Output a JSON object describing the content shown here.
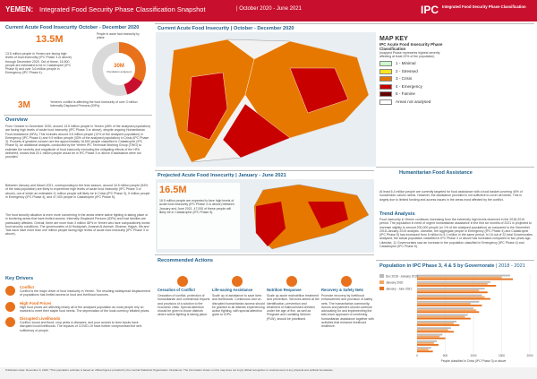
{
  "header": {
    "title": "YEMEN:",
    "subtitle": "Integrated Food Security Phase Classification Snapshot",
    "period": "| October 2020 - June 2021",
    "logo": "IPC",
    "logo_text": "Integrated Food Security Phase Classification"
  },
  "current": {
    "heading": "Current Acute Food Insecurity October - December 2020",
    "figure": "13.5M",
    "caption": "People in acute food insecurity by phase",
    "donut_center": "30M",
    "donut_center_text": "Population analysed",
    "text": "13.5 million people in Yemen are facing high levels of food insecurity (IPC Phase 3 or above) through December 2020. Out of these, 16,500 people are estimated to be in Catastrophe (IPC Phase 5) and over 3.6 million people in Emergency (IPC Phase 4).",
    "idp_figure": "3M",
    "idp_text": "Yemen's conflict is affecting the food insecurity of over 3 million Internally Displaced Persons (IDPs)."
  },
  "chart_data": {
    "type": "donut",
    "values": [
      9.9,
      3.6,
      16.5
    ],
    "colors": [
      "#e8711c",
      "#c8102e",
      "#d9d9d9"
    ]
  },
  "overview": {
    "heading": "Overview",
    "p1": "From October to December 2020, around 13.5 million people in Yemen (45% of the analysed population) are facing high levels of acute food insecurity (IPC Phase 3 or above), despite ongoing Humanitarian Food Assistance (HFA). This includes around 3.6 million people (12% of the analysed population) in Emergency (IPC Phase 4) and 9.9 million people (33% of the analysed population) in Crisis (IPC Phase 3). Pockets of greatest concern are the approximately 16,500 people classified in Catastrophe (IPC Phase 5). An additional analysis, conducted by the Yemen IPC Technical Working Group (TWG) to estimate the severity and magnitude of food insecurity excluding the mitigating effects of the HFA delivered, shows that 20.1 million people would be in IPC Phase 3 or above if assistance were not provided.",
    "p2": "Between January and March 2021, corresponding to the lean season, around 16.5 million people (54% of the total population) are likely to experience high levels of acute food insecurity (IPC Phase 3 or above), out of which an estimated 11 million people will likely be in Crisis (IPC Phase 3), 5 million people in Emergency (IPC Phase 4), and 47,000 people in Catastrophe (IPC Phase 5).",
    "p3": "The food security situation is even more concerning in the areas where active fighting is taking place or in bordering areas that have limited access. Internally Displaced Persons (IDPs) and host families are particularly affected. Overall, there are more than 3 million IDPs in Yemen who face comparatively worse food security conditions. The governorates of Al Hudaydah, Amanat Al Asimah, Dhamar, Hajjah, Ibb and Taiz each have more than one million people facing high levels of acute food insecurity (IPC Phase 3 or above)."
  },
  "drivers": {
    "heading": "Key Drivers",
    "items": [
      {
        "title": "Conflict",
        "text": "Conflict is the major driver of food insecurity in Yemen. The resulting widespread displacement of populations has limited access to food and livelihood sources."
      },
      {
        "title": "High Food Prices",
        "text": "High food prices are affecting nearly all of the analysed population as most people rely on markets to meet their staple food needs. The depreciation of the local currency inflated prices."
      },
      {
        "title": "Disrupted Livelihoods",
        "text": "Conflict, locust and flood, crop pests & diseases, and poor access to farm inputs have disrupted local livelihoods. The impacts of COVID-19 have further compromised the self-sufficiency of people."
      }
    ]
  },
  "map": {
    "heading": "Current Acute Food Insecurity | October - December 2020",
    "key_title": "MAP KEY",
    "key_sub": "IPC Acute Food Insecurity Phase Classification",
    "key_note": "(mapped Phase represents highest severity affecting at least 20% of the population)",
    "phases": [
      {
        "label": "1 - Minimal",
        "color": "#cdfacd"
      },
      {
        "label": "2 - Stressed",
        "color": "#fae61e"
      },
      {
        "label": "3 - Crisis",
        "color": "#e67800"
      },
      {
        "label": "4 - Emergency",
        "color": "#c80000"
      },
      {
        "label": "5 - Famine",
        "color": "#640000"
      },
      {
        "label": "Areas not analysed",
        "color": "#ffffff"
      }
    ]
  },
  "humanitarian": {
    "heading": "Humanitarian Food Assistance",
    "text": "At least 6.4 million people are currently targeted for food assistance with a food basket covering 40% of households' caloric needs. However, the assistance provided is not sufficient to cover all needs. This is largely due to limited funding and access issues in the areas most affected by the conflict."
  },
  "projected": {
    "heading": "Projected Acute Food Insecurity | January - June 2021",
    "figure": "16.5M",
    "text": "16.5 million people are expected to face high levels of acute food insecurity (IPC Phase 3 or above) between January and June 2021. 47,000 of these people will likely be in Catastrophe (IPC Phase 5)."
  },
  "trend": {
    "heading": "Trend Analysis",
    "text": "Food insecurity in Yemen continues increasing from the extremely high levels observed in the 2018-2019 period. The population in need of urgent humanitarian assistance in the first six months of 2021 is projected to increase slightly to around 200,000 people (or 1% of the analysed population) as compared to the December 2018-January 2019 analysis. Likewise, the aggregate people in Emergency (IPC Phase 4) and Catastrophe (IPC Phase 5) has increased from 5 million to 5.1 million in the same period. In 16 out of 22 total Governorates analysed, the actual population classified in IPC Phase 3 or above has increased compared to two years ago. Likewise, 11 Governorates saw an increase in the population classified in Emergency (IPC Phase 4) and Catastrophe (IPC Phase 5)."
  },
  "recommendations": {
    "heading": "Recommended Actions",
    "items": [
      {
        "title": "Cessation of Conflict",
        "text": "Cessation of conflict, protection of humanitarian and commercial imports and provision of a solution to the economic crisis. Special attention should be given to those districts where active fighting is taking place."
      },
      {
        "title": "Life-saving Assistance",
        "text": "Scale up of assistance to save lives and livelihoods. Continuous and un-disrupted humanitarian access should be granted to all districts experiencing active fighting, with special attention given to IDPs."
      },
      {
        "title": "Nutrition Response",
        "text": "Scale up acute malnutrition treatment and prevention. Services aimed at the identification, prevention and treatment of malnourished children under the age of five, as well as Pregnant and Lactating Women (PLW), should be prioritised."
      },
      {
        "title": "Recovery & Safety Nets",
        "text": "Promote recovery by livelihood enhancement and provision of safety nets. The humanitarian community, donors and partners should continue advocating for and implementing the twin-track approach of combining humanitarian assistance together with activities that enhance livelihood resilience."
      }
    ]
  },
  "bars": {
    "heading": "Population in IPC Phase 3, 4 & 5 by Governorate",
    "period": "| 2018 - 2021",
    "xlabel": "People classified in Crisis (IPC Phase 3) or above",
    "categories": [
      null,
      null,
      null,
      null,
      null,
      null,
      null,
      null,
      null,
      null,
      null,
      null
    ],
    "xlim": [
      0,
      2000
    ],
    "xticks": [
      0,
      500,
      1000,
      1500,
      2000
    ],
    "series": [
      {
        "name": "Dec 2018 - January 2019",
        "color": "#b9b9b9",
        "values": [
          1650,
          1300,
          1200,
          1150,
          1100,
          1000,
          900,
          700,
          600,
          450,
          350,
          250
        ]
      },
      {
        "name": "January 2020",
        "color": "#f2a766",
        "values": [
          1500,
          1250,
          1100,
          1200,
          950,
          1050,
          850,
          650,
          550,
          400,
          300,
          200
        ]
      },
      {
        "name": "January - June 2021",
        "color": "#e8711c",
        "values": [
          1700,
          1400,
          1250,
          1300,
          1150,
          1100,
          950,
          750,
          650,
          500,
          380,
          280
        ]
      }
    ]
  },
  "footer": {
    "text": "Publication date: December 3, 2020. *This population estimate is based on official figures provided by the Central Statistical Organization. Disclaimer: The information shown on this map does not imply official recognition or endorsement of any physical and political boundaries."
  }
}
